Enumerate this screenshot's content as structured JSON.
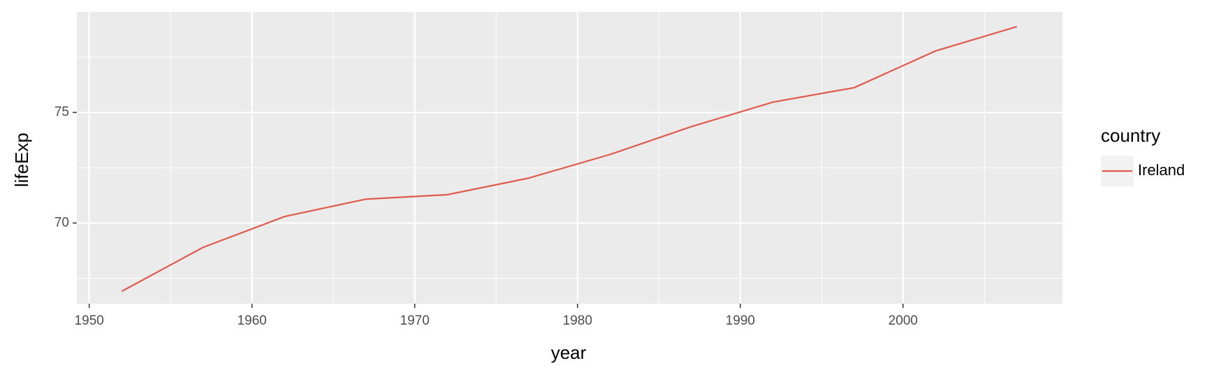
{
  "chart_data": {
    "type": "line",
    "x_label": "year",
    "y_label": "lifeExp",
    "legend_title": "country",
    "legend_position": "right",
    "x": [
      1952,
      1957,
      1962,
      1967,
      1972,
      1977,
      1982,
      1987,
      1992,
      1997,
      2002,
      2007
    ],
    "series": [
      {
        "name": "Ireland",
        "color": "#e05a4e",
        "values": [
          66.91,
          68.9,
          70.29,
          71.08,
          71.28,
          72.03,
          73.1,
          74.36,
          75.467,
          76.122,
          77.783,
          78.885
        ]
      }
    ],
    "xlim": [
      1949.24,
      2009.79
    ],
    "xticks": [
      1950,
      1960,
      1970,
      1980,
      1990,
      2000
    ],
    "ylim": [
      66.35,
      79.55
    ],
    "yticks": [
      70,
      75
    ],
    "grid": true
  }
}
